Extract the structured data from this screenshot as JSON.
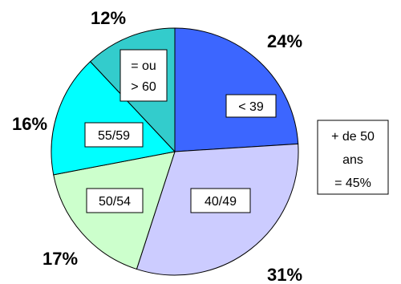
{
  "chart_data": {
    "type": "pie",
    "title": "",
    "slices": [
      {
        "category": "< 39",
        "category_lines": [
          "< 39"
        ],
        "value": 24,
        "value_label": "24%",
        "color": "#3c66ff"
      },
      {
        "category": "40/49",
        "category_lines": [
          "40/49"
        ],
        "value": 31,
        "value_label": "31%",
        "color": "#ccccff"
      },
      {
        "category": "50/54",
        "category_lines": [
          "50/54"
        ],
        "value": 17,
        "value_label": "17%",
        "color": "#ccffcc"
      },
      {
        "category": "55/59",
        "category_lines": [
          "55/59"
        ],
        "value": 16,
        "value_label": "16%",
        "color": "#00ffff"
      },
      {
        "category": "= ou > 60",
        "category_lines": [
          "= ou",
          "> 60"
        ],
        "value": 12,
        "value_label": "12%",
        "color": "#33cccc"
      }
    ],
    "annotation": {
      "lines": [
        "+ de 50",
        "ans",
        "= 45%"
      ]
    }
  }
}
